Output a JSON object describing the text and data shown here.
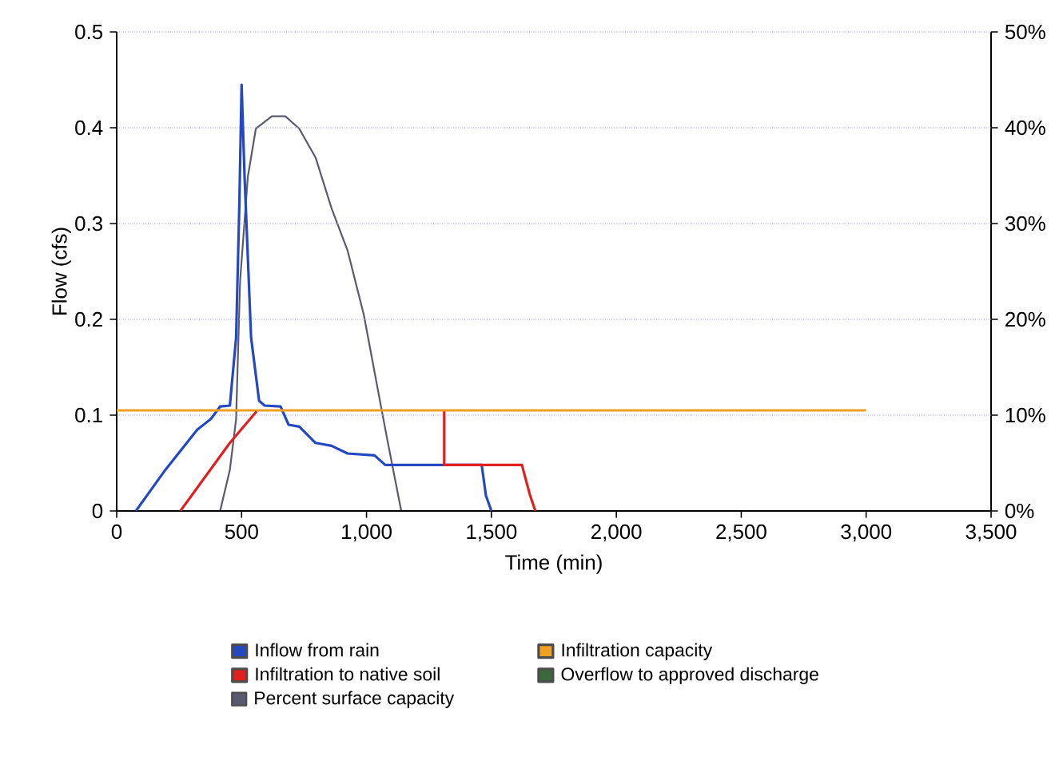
{
  "chart_data": {
    "type": "line",
    "xlabel": "Time (min)",
    "ylabel": "Flow (cfs)",
    "xlim": [
      0,
      3500
    ],
    "xticks": [
      0,
      500,
      {
        "value": 1000,
        "label": "1,000"
      },
      {
        "value": 1500,
        "label": "1,500"
      },
      {
        "value": 2000,
        "label": "2,000"
      },
      {
        "value": 2500,
        "label": "2,500"
      },
      {
        "value": 3000,
        "label": "3,000"
      },
      {
        "value": 3500,
        "label": "3,500"
      }
    ],
    "ylim": [
      0,
      0.5
    ],
    "yticks": [
      0,
      0.1,
      0.2,
      0.3,
      0.4,
      0.5
    ],
    "y2lim": [
      0,
      50
    ],
    "y2ticks": [
      {
        "value": 0,
        "label": "0%"
      },
      {
        "value": 10,
        "label": "10%"
      },
      {
        "value": 20,
        "label": "20%"
      },
      {
        "value": 30,
        "label": "30%"
      },
      {
        "value": 40,
        "label": "40%"
      },
      {
        "value": 50,
        "label": "50%"
      }
    ],
    "grid": "y",
    "legend": "bottom",
    "marker": "none",
    "line_style": "solid",
    "series": [
      {
        "name": "Inflow from rain",
        "color": "#2448c0",
        "x": [
          77,
          195,
          323,
          377,
          414,
          453,
          478,
          491,
          500,
          512,
          538,
          570,
          592,
          656,
          688,
          731,
          796,
          860,
          924,
          1032,
          1075,
          1461,
          1478,
          1500
        ],
        "values": [
          0,
          0.043,
          0.085,
          0.096,
          0.109,
          0.11,
          0.181,
          0.32,
          0.445,
          0.348,
          0.181,
          0.115,
          0.11,
          0.109,
          0.09,
          0.088,
          0.071,
          0.068,
          0.06,
          0.058,
          0.048,
          0.048,
          0.016,
          0
        ]
      },
      {
        "name": "Infiltration capacity",
        "color": "#f0a020",
        "x": [
          0,
          3000
        ],
        "values": [
          0.105,
          0.105
        ]
      },
      {
        "name": "Infiltration to native soil",
        "color": "#e02020",
        "x": [
          255,
          453,
          560,
          900,
          1311,
          1311,
          1622,
          1655,
          1676
        ],
        "values": [
          0,
          0.071,
          0.104,
          null,
          0.104,
          0.048,
          0.048,
          0.016,
          0
        ]
      },
      {
        "name": "Overflow to approved discharge",
        "color": "#3a6a3a"
      },
      {
        "name": "Percent surface capacity",
        "color": "#5a5a6e",
        "axis": "y2",
        "x": [
          414,
          453,
          478,
          494,
          525,
          557,
          621,
          675,
          731,
          796,
          860,
          924,
          989,
          1053,
          1085,
          1139
        ],
        "values": [
          0,
          4.3,
          9.6,
          24,
          34.9,
          39.9,
          41.2,
          41.2,
          39.9,
          36.9,
          31.6,
          27.2,
          20.5,
          11.6,
          7.2,
          0
        ]
      }
    ]
  }
}
